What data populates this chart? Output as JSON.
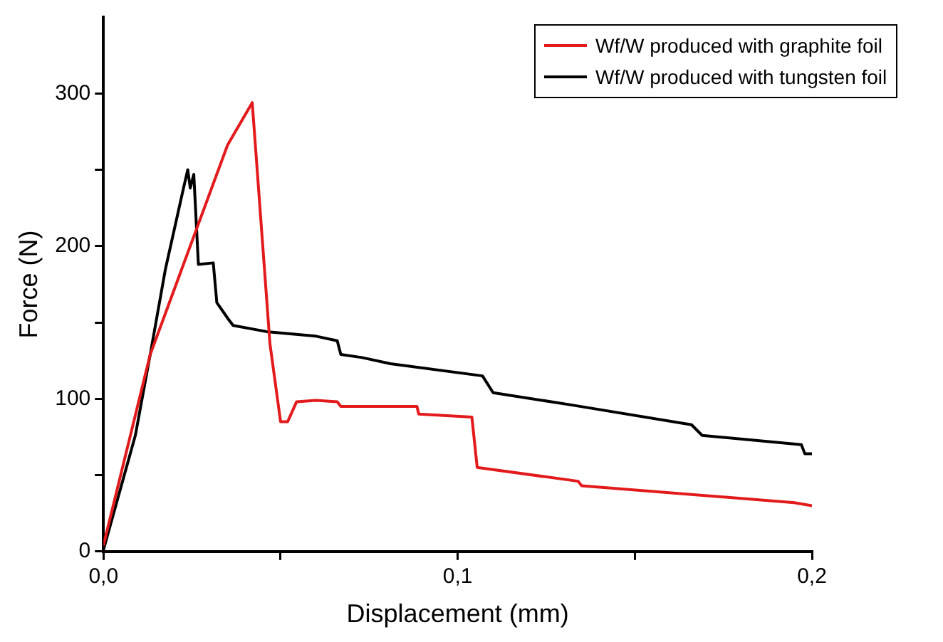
{
  "chart_data": {
    "type": "line",
    "xlabel": "Displacement (mm)",
    "ylabel": "Force (N)",
    "xlim": [
      0,
      0.2
    ],
    "ylim": [
      0,
      350
    ],
    "xticks": [
      {
        "value": 0,
        "label": "0,0"
      },
      {
        "value": 0.05,
        "label": null
      },
      {
        "value": 0.1,
        "label": "0,1"
      },
      {
        "value": 0.15,
        "label": null
      },
      {
        "value": 0.2,
        "label": "0,2"
      }
    ],
    "yticks": [
      0,
      {
        "value": 50,
        "label": null
      },
      100,
      {
        "value": 150,
        "label": null
      },
      200,
      {
        "value": 250,
        "label": null
      },
      300
    ],
    "grid": false,
    "legend": "top right",
    "marker": "none",
    "line_style": "solid",
    "series": [
      {
        "name": "Wf/W produced with graphite foil",
        "color": "#e31a1c",
        "x": [
          0,
          0.0132,
          0.035,
          0.036,
          0.042,
          0.047,
          0.05,
          0.052,
          0.0545,
          0.06,
          0.066,
          0.067,
          0.0885,
          0.089,
          0.104,
          0.1055,
          0.134,
          0.135,
          0.195,
          0.2
        ],
        "values": [
          4,
          129,
          266,
          270,
          294,
          136,
          85,
          85,
          98,
          99,
          98,
          95,
          95,
          90,
          88,
          55,
          46,
          43,
          32,
          30
        ]
      },
      {
        "name": "Wf/W produced with tungsten foil",
        "color": "#000000",
        "x": [
          0,
          0.009,
          0.0132,
          0.0175,
          0.0226,
          0.0238,
          0.0245,
          0.0255,
          0.0268,
          0.031,
          0.032,
          0.0353,
          0.0366,
          0.046,
          0.06,
          0.066,
          0.067,
          0.073,
          0.081,
          0.107,
          0.11,
          0.132,
          0.166,
          0.169,
          0.197,
          0.198,
          0.2
        ],
        "values": [
          1,
          76,
          129,
          185,
          238,
          250,
          238,
          247,
          188,
          189,
          163,
          152,
          148,
          144,
          141,
          138,
          129,
          127,
          123,
          115,
          104,
          96,
          83,
          76,
          70,
          64,
          64
        ]
      }
    ]
  }
}
